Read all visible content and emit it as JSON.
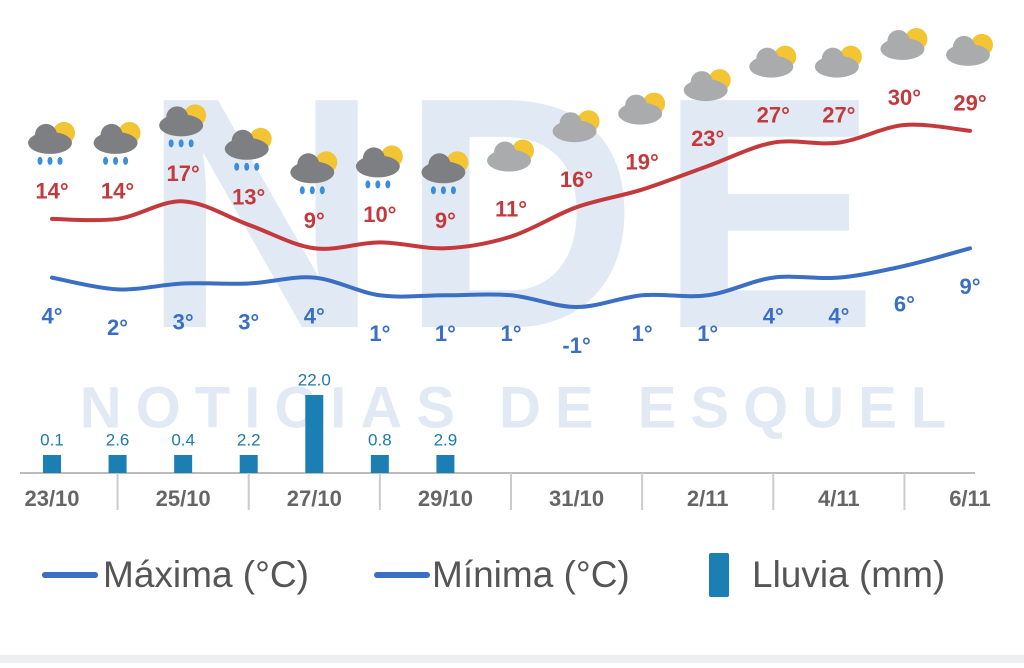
{
  "chart_data": {
    "type": "line",
    "categories": [
      "23/10",
      null,
      "25/10",
      null,
      "27/10",
      null,
      "29/10",
      null,
      "31/10",
      null,
      "2/11",
      null,
      "4/11",
      null,
      "6/11"
    ],
    "series": [
      {
        "name": "Máxima (°C)",
        "color": "#c43a3c",
        "values": [
          14,
          14,
          17,
          13,
          9,
          10,
          9,
          11,
          16,
          19,
          23,
          27,
          27,
          30,
          29
        ],
        "value_labels": [
          "14°",
          "14°",
          "17°",
          "13°",
          "9°",
          "10°",
          "9°",
          "11°",
          "16°",
          "19°",
          "23°",
          "27°",
          "27°",
          "30°",
          "29°"
        ]
      },
      {
        "name": "Mínima (°C)",
        "color": "#3b6fc4",
        "values": [
          4,
          2,
          3,
          3,
          4,
          1,
          1,
          1,
          -1,
          1,
          1,
          4,
          4,
          6,
          9
        ],
        "value_labels": [
          "4°",
          "2°",
          "3°",
          "3°",
          "4°",
          "1°",
          "1°",
          "1°",
          "-1°",
          "1°",
          "1°",
          "4°",
          "4°",
          "6°",
          "9°"
        ]
      },
      {
        "name": "Lluvia (mm)",
        "type": "bar",
        "color": "#1c7fb3",
        "values": [
          0.1,
          2.6,
          0.4,
          2.2,
          22.0,
          0.8,
          2.9,
          null,
          null,
          null,
          null,
          null,
          null,
          null,
          null
        ],
        "value_labels": [
          "0.1",
          "2.6",
          "0.4",
          "2.2",
          "22.0",
          "0.8",
          "2.9",
          null,
          null,
          null,
          null,
          null,
          null,
          null,
          null
        ]
      }
    ]
  },
  "watermark": {
    "logo": "NDE",
    "text": "NOTICIAS DE ESQUEL"
  }
}
